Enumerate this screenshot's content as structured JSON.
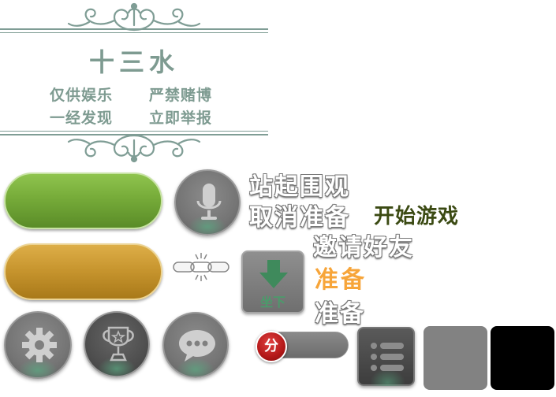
{
  "banner": {
    "title": "十三水",
    "notice_left_1": "仅供娱乐",
    "notice_right_1": "严禁赌博",
    "notice_left_2": "一经发现",
    "notice_right_2": "立即举报"
  },
  "labels": {
    "stand_watch": "站起围观",
    "cancel_ready": "取消准备",
    "start_game": "开始游戏",
    "invite_friends": "邀请好友",
    "ready_active": "准备",
    "ready": "准备",
    "sit_down": "坐下",
    "score_toggle": "分"
  },
  "colors": {
    "banner": "#7e9b91",
    "start_game": "#3b4a13",
    "ready_active": "#f7a53a",
    "green_button": "#76ab39",
    "orange_button": "#c8962f",
    "score_badge": "#b31818"
  },
  "icons": [
    "ornament-icon",
    "microphone-icon",
    "chain-link-icon",
    "download-arrow-icon",
    "gear-icon",
    "trophy-icon",
    "chat-bubble-icon",
    "list-icon"
  ]
}
